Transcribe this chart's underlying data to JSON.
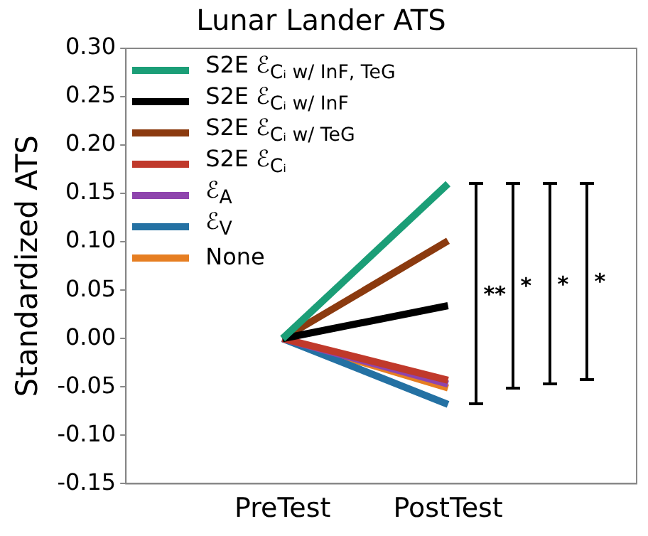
{
  "chart_data": {
    "type": "line",
    "title": "Lunar Lander ATS",
    "ylabel": "Standardized ATS",
    "categories": [
      "PreTest",
      "PostTest"
    ],
    "series": [
      {
        "name": "S2E ℰ$_{Cᵢ w/ InF, TeG}$",
        "color": "#1b9e77",
        "values": [
          0,
          0.16
        ]
      },
      {
        "name": "S2E ℰ$_{Cᵢ w/ InF}$",
        "color": "#000000",
        "values": [
          0,
          0.034
        ]
      },
      {
        "name": "S2E ℰ$_{Cᵢ w/ TeG}$",
        "color": "#8b3a0f",
        "values": [
          0,
          0.101
        ]
      },
      {
        "name": "S2E ℰ$_{Cᵢ}$",
        "color": "#c0392b",
        "values": [
          0,
          -0.043
        ]
      },
      {
        "name": "ℰ$_{A}$",
        "color": "#8e44ad",
        "values": [
          0,
          -0.047
        ]
      },
      {
        "name": "ℰ$_{V}$",
        "color": "#2471a3",
        "values": [
          0,
          -0.068
        ]
      },
      {
        "name": "None",
        "color": "#e67e22",
        "values": [
          0,
          -0.051
        ]
      }
    ],
    "ylim": [
      -0.15,
      0.3
    ],
    "yticks": [
      -0.15,
      {
        "value": -0.1,
        "label": "-0.10"
      },
      -0.05,
      {
        "value": 0,
        "label": "0.00"
      },
      0.05,
      {
        "value": 0.1,
        "label": "0.10"
      },
      0.15,
      {
        "value": 0.2,
        "label": "0.20"
      },
      0.25,
      {
        "value": 0.3,
        "label": "0.30"
      }
    ],
    "annotations": [
      "**",
      "*",
      "*",
      "*"
    ],
    "legend": "top left",
    "grid": false,
    "marker": "none",
    "line_style": "solid"
  }
}
